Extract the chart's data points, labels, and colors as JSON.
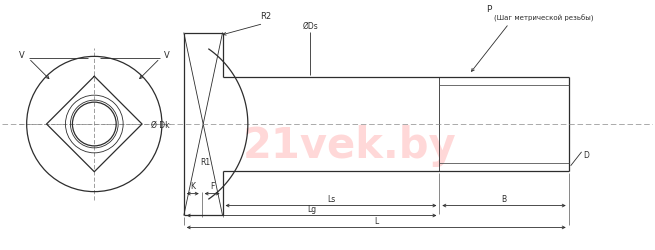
{
  "bg_color": "#ffffff",
  "line_color": "#2d2d2d",
  "figsize": [
    6.55,
    2.51
  ],
  "dpi": 100,
  "labels": {
    "V": "V",
    "R2": "R2",
    "Ds": "ØDs",
    "P": "P",
    "P_sub": "(Шаг метрической резьбы)",
    "Dk": "Ø Dk",
    "R1": "R1",
    "K": "K",
    "F": "F",
    "Ls": "Ls",
    "Lg": "Lg",
    "B": "B",
    "L": "L",
    "D": "D"
  }
}
